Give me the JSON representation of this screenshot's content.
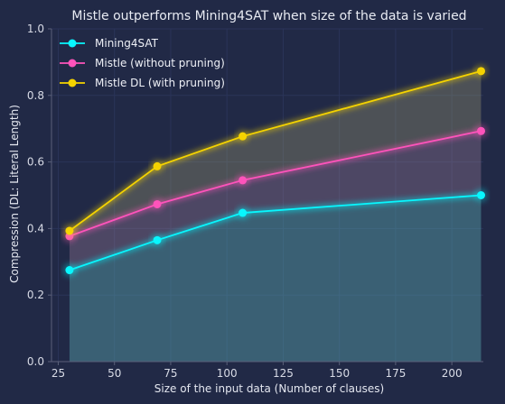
{
  "chart_data": {
    "type": "line",
    "title": "Mistle outperforms Mining4SAT when size of the data is varied",
    "xlabel": "Size of the input data (Number of clauses)",
    "ylabel": "Compression (DL: Literal Length)",
    "xlim": [
      22,
      214
    ],
    "ylim": [
      0,
      1.0
    ],
    "xticks": [
      25,
      50,
      75,
      100,
      125,
      150,
      175,
      200
    ],
    "yticks": [
      0.0,
      0.2,
      0.4,
      0.6,
      0.8,
      1.0
    ],
    "xtick_labels": [
      "25",
      "50",
      "75",
      "100",
      "125",
      "150",
      "175",
      "200"
    ],
    "ytick_labels": [
      "0.0",
      "0.2",
      "0.4",
      "0.6",
      "0.8",
      "1.0"
    ],
    "x": [
      30,
      69,
      107,
      213
    ],
    "grid": true,
    "legend_position": "top-left",
    "background_color": "#212946",
    "series": [
      {
        "name": "Mining4SAT",
        "values": [
          0.275,
          0.365,
          0.447,
          0.5
        ],
        "color": "#08F7FE"
      },
      {
        "name": "Mistle (without pruning)",
        "values": [
          0.377,
          0.473,
          0.545,
          0.693
        ],
        "color": "#FE53BB"
      },
      {
        "name": "Mistle DL (with pruning)",
        "values": [
          0.393,
          0.587,
          0.677,
          0.873
        ],
        "color": "#F5D300"
      }
    ]
  }
}
